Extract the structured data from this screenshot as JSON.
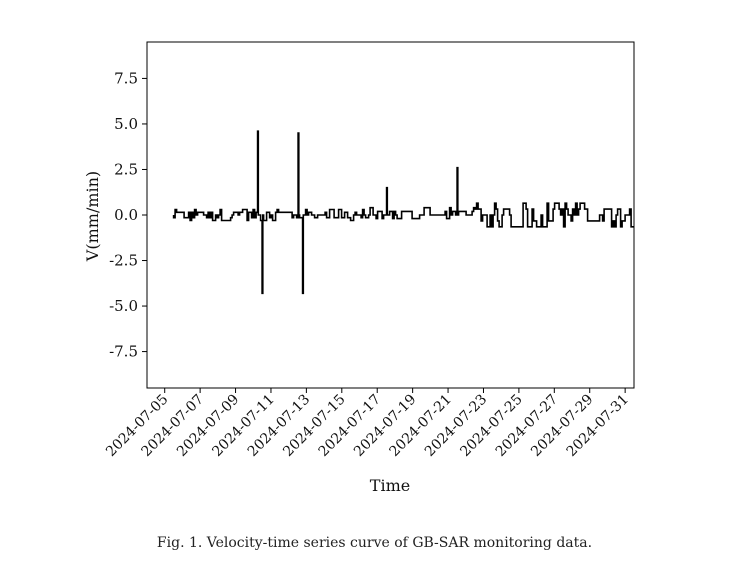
{
  "chart_data": {
    "type": "line",
    "title": "",
    "xlabel": "Time",
    "ylabel": "V(mm/min)",
    "xlim": [
      "2024-07-04",
      "2024-07-31T12:00"
    ],
    "ylim": [
      -9.5,
      9.5
    ],
    "yticks": [
      "7.5",
      "5.0",
      "2.5",
      "0.0",
      "-2.5",
      "-5.0",
      "-7.5"
    ],
    "xticks": [
      "2024-07-05",
      "2024-07-07",
      "2024-07-09",
      "2024-07-11",
      "2024-07-13",
      "2024-07-15",
      "2024-07-17",
      "2024-07-19",
      "2024-07-21",
      "2024-07-23",
      "2024-07-25",
      "2024-07-27",
      "2024-07-29",
      "2024-07-31"
    ],
    "grid": false,
    "series": [
      {
        "color": "#000000",
        "start": "2024-07-05T12:00",
        "end": "2024-07-31T12:00",
        "noise_segments": [
          {
            "from": "2024-07-05T12:00",
            "to": "2024-07-16T12:00",
            "amplitude": 0.3
          },
          {
            "from": "2024-07-16T12:00",
            "to": "2024-07-22T12:00",
            "amplitude": 0.4
          },
          {
            "from": "2024-07-22T12:00",
            "to": "2024-07-31T12:00",
            "amplitude": 0.65
          }
        ],
        "spikes": [
          {
            "x": "2024-07-10T06:00",
            "y": 4.6
          },
          {
            "x": "2024-07-10T12:00",
            "y": -4.3
          },
          {
            "x": "2024-07-12T12:00",
            "y": 4.5
          },
          {
            "x": "2024-07-12T18:00",
            "y": -4.3
          },
          {
            "x": "2024-07-17T12:00",
            "y": 1.5
          },
          {
            "x": "2024-07-21T12:00",
            "y": 2.6
          }
        ]
      }
    ]
  },
  "caption": "Fig. 1. Velocity-time series curve of GB-SAR monitoring data."
}
